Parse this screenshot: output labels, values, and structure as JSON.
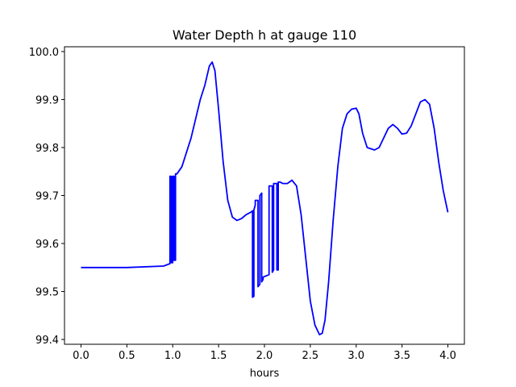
{
  "chart_data": {
    "type": "line",
    "title": "Water Depth h at gauge 110",
    "xlabel": "hours",
    "ylabel": "",
    "xlim": [
      -0.18,
      4.18
    ],
    "ylim": [
      99.39,
      100.01
    ],
    "xticks": [
      0.0,
      0.5,
      1.0,
      1.5,
      2.0,
      2.5,
      3.0,
      3.5,
      4.0
    ],
    "xtick_labels": [
      "0.0",
      "0.5",
      "1.0",
      "1.5",
      "2.0",
      "2.5",
      "3.0",
      "3.5",
      "4.0"
    ],
    "yticks": [
      99.4,
      99.5,
      99.6,
      99.7,
      99.8,
      99.9,
      100.0
    ],
    "ytick_labels": [
      "99.4",
      "99.5",
      "99.6",
      "99.7",
      "99.8",
      "99.9",
      "100.0"
    ],
    "grid": false,
    "legend": "none",
    "series": [
      {
        "color": "#0000ff",
        "x": [
          0.0,
          0.5,
          0.9,
          0.97,
          0.97,
          0.985,
          0.985,
          1.0,
          1.0,
          1.015,
          1.015,
          1.03,
          1.03,
          1.045,
          1.1,
          1.2,
          1.3,
          1.35,
          1.4,
          1.43,
          1.46,
          1.5,
          1.55,
          1.6,
          1.65,
          1.7,
          1.75,
          1.8,
          1.85,
          1.87,
          1.87,
          1.885,
          1.885,
          1.9,
          1.9,
          1.93,
          1.93,
          1.95,
          1.95,
          1.97,
          1.97,
          1.985,
          1.985,
          2.05,
          2.05,
          2.085,
          2.085,
          2.1,
          2.1,
          2.135,
          2.135,
          2.15,
          2.15,
          2.17,
          2.2,
          2.25,
          2.3,
          2.35,
          2.4,
          2.45,
          2.5,
          2.55,
          2.6,
          2.63,
          2.66,
          2.7,
          2.75,
          2.8,
          2.85,
          2.9,
          2.95,
          3.0,
          3.03,
          3.07,
          3.12,
          3.2,
          3.25,
          3.3,
          3.35,
          3.4,
          3.45,
          3.5,
          3.55,
          3.6,
          3.65,
          3.7,
          3.75,
          3.8,
          3.85,
          3.9,
          3.95,
          4.0
        ],
        "y": [
          99.55,
          99.55,
          99.553,
          99.558,
          99.74,
          99.74,
          99.56,
          99.56,
          99.74,
          99.74,
          99.565,
          99.565,
          99.745,
          99.745,
          99.76,
          99.82,
          99.9,
          99.93,
          99.97,
          99.978,
          99.96,
          99.88,
          99.77,
          99.69,
          99.655,
          99.648,
          99.652,
          99.66,
          99.665,
          99.668,
          99.488,
          99.49,
          99.67,
          99.68,
          99.69,
          99.69,
          99.51,
          99.515,
          99.7,
          99.705,
          99.52,
          99.525,
          99.53,
          99.535,
          99.72,
          99.72,
          99.54,
          99.545,
          99.725,
          99.725,
          99.545,
          99.545,
          99.728,
          99.728,
          99.725,
          99.725,
          99.732,
          99.72,
          99.66,
          99.57,
          99.48,
          99.43,
          99.41,
          99.413,
          99.44,
          99.52,
          99.65,
          99.76,
          99.84,
          99.87,
          99.88,
          99.882,
          99.87,
          99.83,
          99.8,
          99.795,
          99.8,
          99.82,
          99.84,
          99.848,
          99.84,
          99.828,
          99.83,
          99.845,
          99.87,
          99.895,
          99.9,
          99.89,
          99.84,
          99.77,
          99.71,
          99.665
        ]
      }
    ]
  }
}
